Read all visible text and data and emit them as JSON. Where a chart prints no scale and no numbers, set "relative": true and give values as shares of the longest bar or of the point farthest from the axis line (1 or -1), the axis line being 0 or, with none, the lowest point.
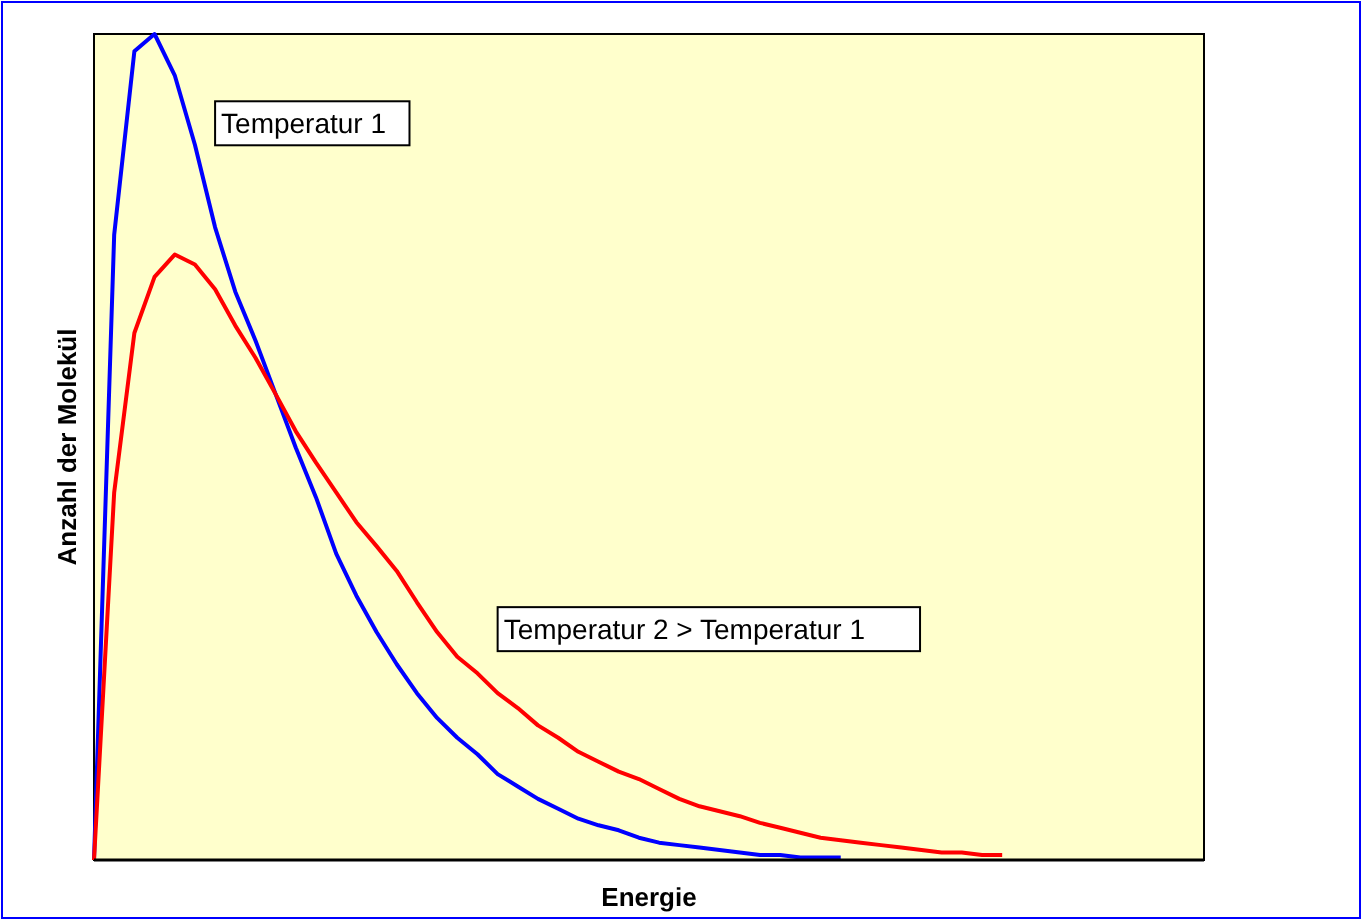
{
  "chart_data": {
    "type": "line",
    "relative": true,
    "xlabel": "Energie",
    "ylabel": "Anzahl der Molekül",
    "categories": [
      null,
      null,
      null,
      null,
      null,
      null,
      null,
      null,
      null,
      null,
      null,
      null,
      null,
      null,
      null,
      null,
      null,
      null,
      null,
      null,
      null,
      null,
      null,
      null,
      null,
      null,
      null,
      null,
      null,
      null,
      null,
      null,
      null,
      null,
      null,
      null,
      null,
      null,
      null,
      null,
      null,
      null,
      null,
      null,
      null,
      null,
      null,
      null,
      null,
      null,
      null,
      null,
      null,
      null,
      null,
      null
    ],
    "series": [
      {
        "name": "Temperatur 1",
        "color": "#0000ff",
        "values": [
          0,
          0.757,
          0.979,
          1,
          0.95,
          0.866,
          0.766,
          0.688,
          0.629,
          0.564,
          0.499,
          0.439,
          0.371,
          0.32,
          0.276,
          0.237,
          0.202,
          0.172,
          0.148,
          0.128,
          0.104,
          0.089,
          0.074,
          0.062,
          0.05,
          0.042,
          0.036,
          0.027,
          0.021,
          0.018,
          0.015,
          0.012,
          0.009,
          0.006,
          0.006,
          0.003,
          0.003,
          0.003,
          null,
          null,
          null,
          null,
          null,
          null,
          null,
          null,
          null,
          null,
          null,
          null,
          null,
          null,
          null,
          null,
          null,
          null
        ]
      },
      {
        "name": "Temperatur 2 > Temperatur 1",
        "color": "#ff0000",
        "values": [
          0,
          0.445,
          0.638,
          0.706,
          0.733,
          0.721,
          0.691,
          0.647,
          0.608,
          0.564,
          0.519,
          0.481,
          0.445,
          0.409,
          0.38,
          0.35,
          0.312,
          0.276,
          0.246,
          0.226,
          0.202,
          0.184,
          0.163,
          0.148,
          0.131,
          0.119,
          0.107,
          0.098,
          0.086,
          0.074,
          0.065,
          0.059,
          0.053,
          0.045,
          0.039,
          0.033,
          0.027,
          0.024,
          0.021,
          0.018,
          0.015,
          0.012,
          0.009,
          0.009,
          0.006,
          0.006,
          null,
          null,
          null,
          null,
          null,
          null,
          null,
          null,
          null,
          null
        ]
      }
    ],
    "legend": false,
    "marker": "none",
    "line_style": "solid"
  }
}
